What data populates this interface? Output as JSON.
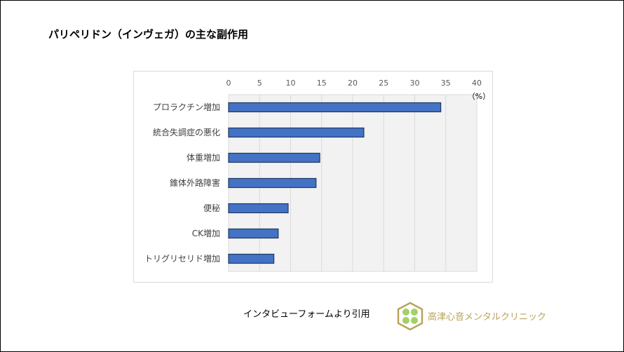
{
  "title": "パリペリドン（インヴェガ）の主な副作用",
  "source": "インタビューフォームより引用",
  "clinic": "高津心音メンタルクリニック",
  "colors": {
    "bar": "#4472c4",
    "bar_border": "#1f3864",
    "plot_bg": "#f2f2f2",
    "grid": "#d9d9d9",
    "logo_gold": "#b9a35a",
    "logo_green": "#8cc63f"
  },
  "chart_data": {
    "type": "bar",
    "orientation": "horizontal",
    "categories": [
      "プロラクチン増加",
      "統合失調症の悪化",
      "体重増加",
      "錐体外路障害",
      "便秘",
      "CK増加",
      "トリグリセリド増加"
    ],
    "values": [
      34.2,
      21.8,
      14.7,
      14.1,
      9.6,
      8.0,
      7.3
    ],
    "xlim": [
      0,
      40
    ],
    "xticks": [
      "0",
      "5",
      "10",
      "15",
      "20",
      "25",
      "30",
      "35",
      "40"
    ],
    "unit": "（%）",
    "grid": true,
    "x_axis_position": "top"
  }
}
